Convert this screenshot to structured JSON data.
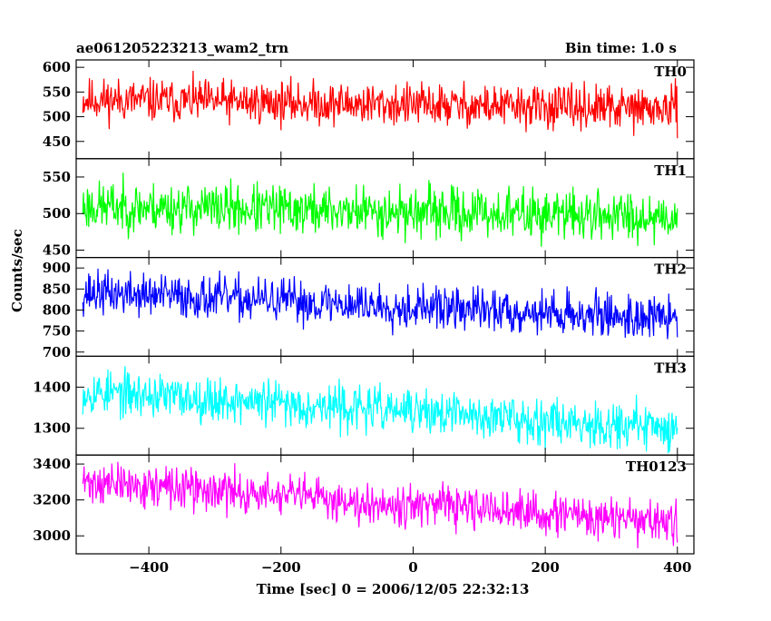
{
  "header": {
    "title": "ae061205223213_wam2_trn",
    "bin_time": "Bin time: 1.0 s"
  },
  "axes": {
    "ylabel": "Counts/sec",
    "xlabel": "Time [sec] 0 = 2006/12/05 22:32:13"
  },
  "chart_data": [
    {
      "type": "line",
      "name": "TH0",
      "color": "#ff0000",
      "ylim": [
        415,
        615
      ],
      "yticks": [
        450,
        500,
        550,
        600
      ],
      "mean_start": 535,
      "mean_end": 515,
      "noise_amplitude": 32,
      "seed": 11
    },
    {
      "type": "line",
      "name": "TH1",
      "color": "#00ff00",
      "ylim": [
        440,
        575
      ],
      "yticks": [
        450,
        500,
        550
      ],
      "mean_start": 510,
      "mean_end": 496,
      "noise_amplitude": 25,
      "seed": 23
    },
    {
      "type": "line",
      "name": "TH2",
      "color": "#0000ff",
      "ylim": [
        690,
        925
      ],
      "yticks": [
        700,
        750,
        800,
        850,
        900
      ],
      "mean_start": 842,
      "mean_end": 780,
      "noise_amplitude": 38,
      "seed": 37
    },
    {
      "type": "line",
      "name": "TH3",
      "color": "#00ffff",
      "ylim": [
        1235,
        1475
      ],
      "yticks": [
        1300,
        1400
      ],
      "mean_start": 1390,
      "mean_end": 1300,
      "noise_amplitude": 40,
      "seed": 53
    },
    {
      "type": "line",
      "name": "TH0123",
      "color": "#ff00ff",
      "ylim": [
        2900,
        3450
      ],
      "yticks": [
        3000,
        3200,
        3400
      ],
      "mean_start": 3300,
      "mean_end": 3070,
      "noise_amplitude": 85,
      "seed": 71
    }
  ],
  "x_axis": {
    "xlim": [
      -510,
      425
    ],
    "data_range": [
      -500,
      400
    ],
    "ticks": [
      -400,
      -200,
      0,
      200,
      400
    ],
    "tick_labels": [
      "−400",
      "−200",
      "0",
      "200",
      "400"
    ]
  }
}
